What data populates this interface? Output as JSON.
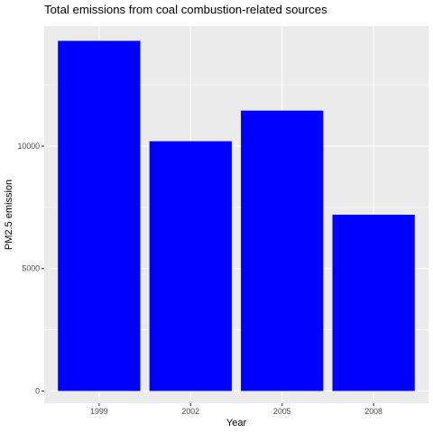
{
  "chart_data": {
    "type": "bar",
    "title": "Total emissions from coal combustion-related sources",
    "xlabel": "Year",
    "ylabel": "PM2.5 emission",
    "categories": [
      "1999",
      "2002",
      "2005",
      "2008"
    ],
    "values": [
      14300,
      10200,
      11450,
      7200
    ],
    "ylim": [
      -500,
      14900
    ],
    "yticks": [
      0,
      5000,
      10000
    ],
    "ytick_labels": [
      "0",
      "5000",
      "10000"
    ],
    "bar_color": "#0000ff",
    "panel_color": "#ebebeb",
    "grid": true,
    "legend": "none"
  }
}
